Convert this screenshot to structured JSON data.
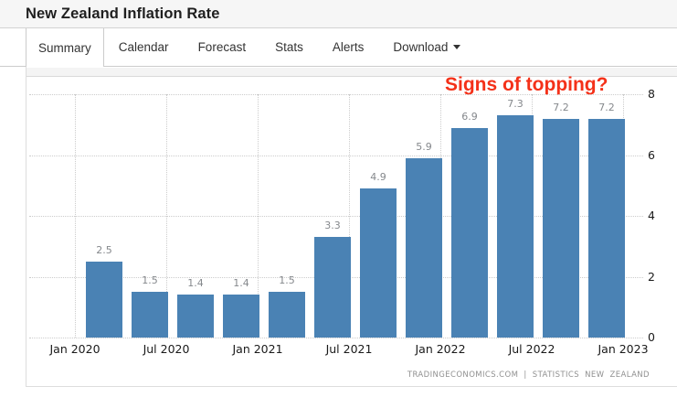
{
  "header": {
    "title": "New Zealand Inflation Rate"
  },
  "nav": {
    "tabs": [
      {
        "label": "Summary",
        "active": true
      },
      {
        "label": "Calendar",
        "active": false
      },
      {
        "label": "Forecast",
        "active": false
      },
      {
        "label": "Stats",
        "active": false
      },
      {
        "label": "Alerts",
        "active": false
      },
      {
        "label": "Download",
        "active": false,
        "has_dropdown": true
      }
    ]
  },
  "chart": {
    "annotation": {
      "text": "Signs of topping?",
      "color": "#f43119"
    },
    "attribution": "TRADINGECONOMICS.COM | STATISTICS NEW ZEALAND"
  },
  "chart_data": {
    "type": "bar",
    "title": "New Zealand Inflation Rate",
    "categories": [
      "2020 Q1",
      "2020 Q2",
      "2020 Q3",
      "2020 Q4",
      "2021 Q1",
      "2021 Q2",
      "2021 Q3",
      "2021 Q4",
      "2022 Q1",
      "2022 Q2",
      "2022 Q3",
      "2022 Q4"
    ],
    "values": [
      2.5,
      1.5,
      1.4,
      1.4,
      1.5,
      3.3,
      4.9,
      5.9,
      6.9,
      7.3,
      7.2,
      7.2
    ],
    "data_labels": [
      "2.5",
      "1.5",
      "1.4",
      "1.4",
      "1.5",
      "3.3",
      "4.9",
      "5.9",
      "6.9",
      "7.3",
      "7.2",
      "7.2"
    ],
    "x_tick_labels": [
      "Jan 2020",
      "Jul 2020",
      "Jan 2021",
      "Jul 2021",
      "Jan 2022",
      "Jul 2022",
      "Jan 2023"
    ],
    "y_ticks": [
      8,
      6,
      4,
      2,
      0
    ],
    "ylim": [
      0,
      8
    ],
    "y_axis_position": "right",
    "grid": "dotted",
    "legend": "none",
    "bar_color": "#4a82b4",
    "annotation": "Signs of topping?"
  }
}
